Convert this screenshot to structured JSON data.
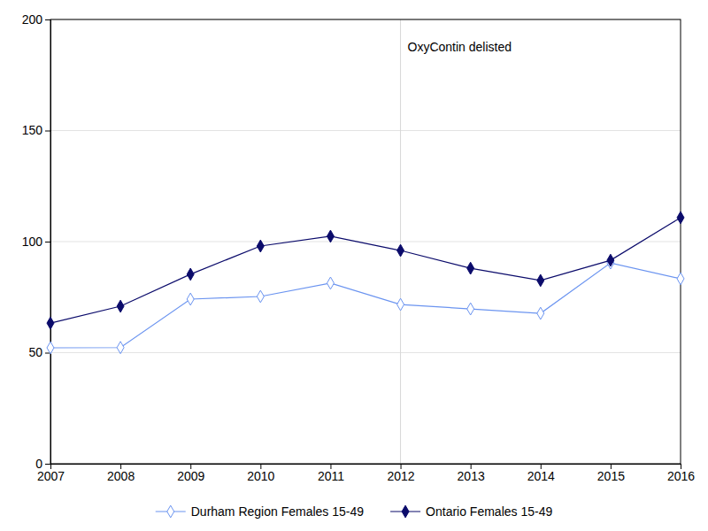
{
  "chart_data": {
    "type": "line",
    "x": [
      2007,
      2008,
      2009,
      2010,
      2011,
      2012,
      2013,
      2014,
      2015,
      2016
    ],
    "series": [
      {
        "name": "Durham Region Females 15-49",
        "color": "#6b94f0",
        "marker": "diamond-open",
        "values": [
          52.2,
          52.3,
          74.1,
          75.3,
          81.3,
          71.7,
          69.7,
          67.7,
          90.4,
          83.3
        ]
      },
      {
        "name": "Ontario Females 15-49",
        "color": "#0b0b6b",
        "marker": "diamond",
        "values": [
          63.3,
          70.9,
          85.3,
          98.0,
          102.4,
          96.0,
          88.0,
          82.5,
          91.6,
          110.8
        ]
      }
    ],
    "xlim": [
      2007,
      2016
    ],
    "xticks": [
      2007,
      2008,
      2009,
      2010,
      2011,
      2012,
      2013,
      2014,
      2015,
      2016
    ],
    "ylim": [
      0,
      200
    ],
    "yticks": [
      0,
      50,
      100,
      150,
      200
    ],
    "grid": true,
    "legend": "bottom",
    "annotations": [
      {
        "text": "OxyContin delisted",
        "x": 2012
      }
    ]
  }
}
